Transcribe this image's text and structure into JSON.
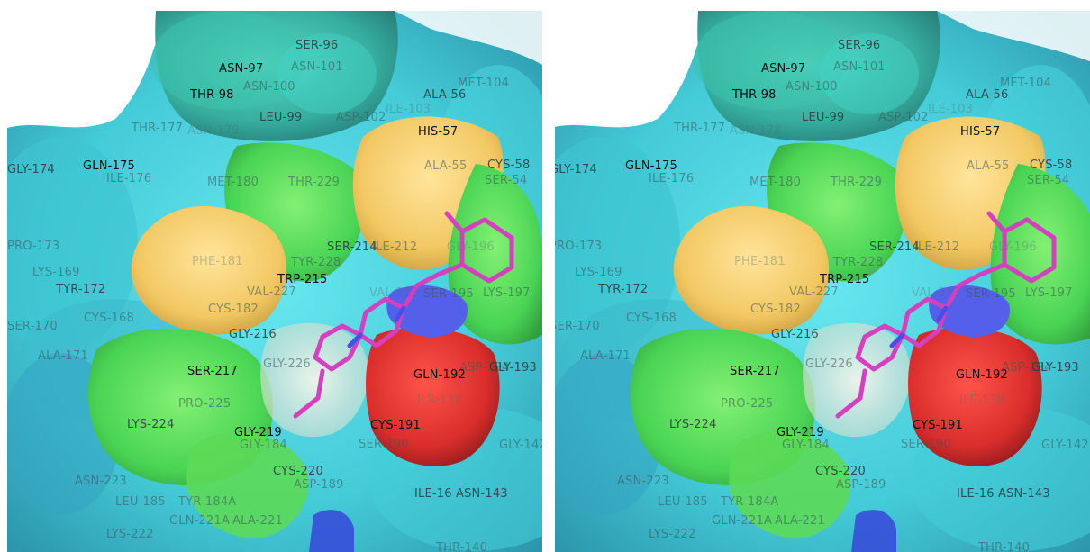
{
  "scene": {
    "views": [
      "left",
      "right"
    ],
    "colors": {
      "background": "#ffffff",
      "surface_cyan": "#39c8d6",
      "surface_teal": "#2db3a6",
      "pocket_yellow": "#f2c55a",
      "pocket_green": "#43d94a",
      "acidic_red": "#d8211f",
      "nitrogen_blue": "#4a57e8",
      "ligand_magenta": "#d63fc0"
    }
  },
  "residue_labels": [
    {
      "text": "ASN-97"
    },
    {
      "text": "SER-96"
    },
    {
      "text": "ASN-101"
    },
    {
      "text": "THR-98"
    },
    {
      "text": "ASN-100"
    },
    {
      "text": "MET-104"
    },
    {
      "text": "ALA-56"
    },
    {
      "text": "LEU-99"
    },
    {
      "text": "ASP-102"
    },
    {
      "text": "ILE-103"
    },
    {
      "text": "HIS-57"
    },
    {
      "text": "THR-177"
    },
    {
      "text": "ASN-178"
    },
    {
      "text": "GLY-174"
    },
    {
      "text": "GLN-175"
    },
    {
      "text": "ILE-176"
    },
    {
      "text": "ALA-55"
    },
    {
      "text": "CYS-58"
    },
    {
      "text": "SER-54"
    },
    {
      "text": "MET-180"
    },
    {
      "text": "THR-229"
    },
    {
      "text": "PRO-173"
    },
    {
      "text": "SER-214"
    },
    {
      "text": "ILE-212"
    },
    {
      "text": "GLY-196"
    },
    {
      "text": "PHE-181"
    },
    {
      "text": "TYR-228"
    },
    {
      "text": "LYS-169"
    },
    {
      "text": "TRP-215"
    },
    {
      "text": "TYR-172"
    },
    {
      "text": "VAL-227"
    },
    {
      "text": "VAL-213"
    },
    {
      "text": "SER-195"
    },
    {
      "text": "LYS-197"
    },
    {
      "text": "CYS-168"
    },
    {
      "text": "CYS-182"
    },
    {
      "text": "SER-170"
    },
    {
      "text": "GLY-216"
    },
    {
      "text": "ALA-171"
    },
    {
      "text": "GLY-226"
    },
    {
      "text": "SER-217"
    },
    {
      "text": "GLN-192"
    },
    {
      "text": "ASP-194"
    },
    {
      "text": "GLY-193"
    },
    {
      "text": "PRO-225"
    },
    {
      "text": "ILE-138"
    },
    {
      "text": "LYS-224"
    },
    {
      "text": "CYS-191"
    },
    {
      "text": "GLY-219"
    },
    {
      "text": "SER-190"
    },
    {
      "text": "GLY-142"
    },
    {
      "text": "GLY-184"
    },
    {
      "text": "ASN-223"
    },
    {
      "text": "CYS-220"
    },
    {
      "text": "ASP-189"
    },
    {
      "text": "LEU-185"
    },
    {
      "text": "TYR-184A"
    },
    {
      "text": "ILE-16"
    },
    {
      "text": "ASN-143"
    },
    {
      "text": "GLN-221A"
    },
    {
      "text": "ALA-221"
    },
    {
      "text": "LYS-222"
    },
    {
      "text": "THR-140"
    }
  ]
}
